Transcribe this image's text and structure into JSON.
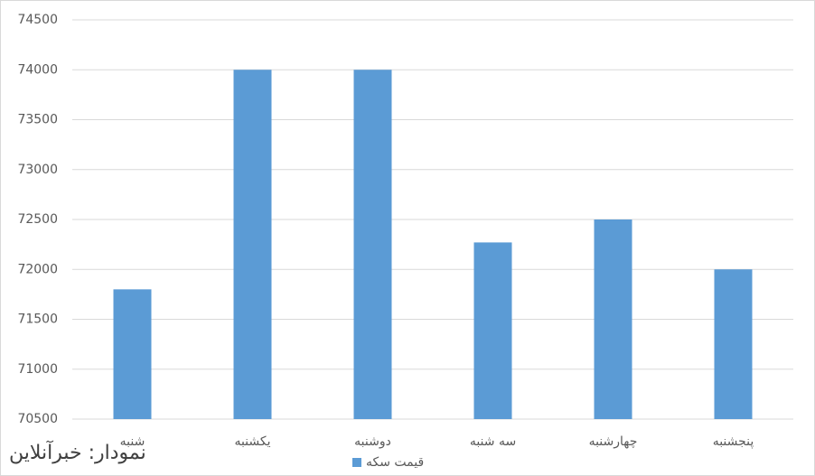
{
  "chart_data": {
    "type": "bar",
    "categories": [
      "شنبه",
      "یکشنبه",
      "دوشنبه",
      "سه شنبه",
      "چهارشنبه",
      "پنجشنبه"
    ],
    "series": [
      {
        "name": "قیمت سکه",
        "color": "#5b9bd5",
        "values": [
          71800,
          74000,
          74000,
          72270,
          72500,
          72000
        ]
      }
    ],
    "ylim": [
      70500,
      74500
    ],
    "yticks": [
      70500,
      71000,
      71500,
      72000,
      72500,
      73000,
      73500,
      74000,
      74500
    ],
    "grid": true,
    "legend": "bottom",
    "annotation": "نمودار: خبرآنلاین"
  }
}
